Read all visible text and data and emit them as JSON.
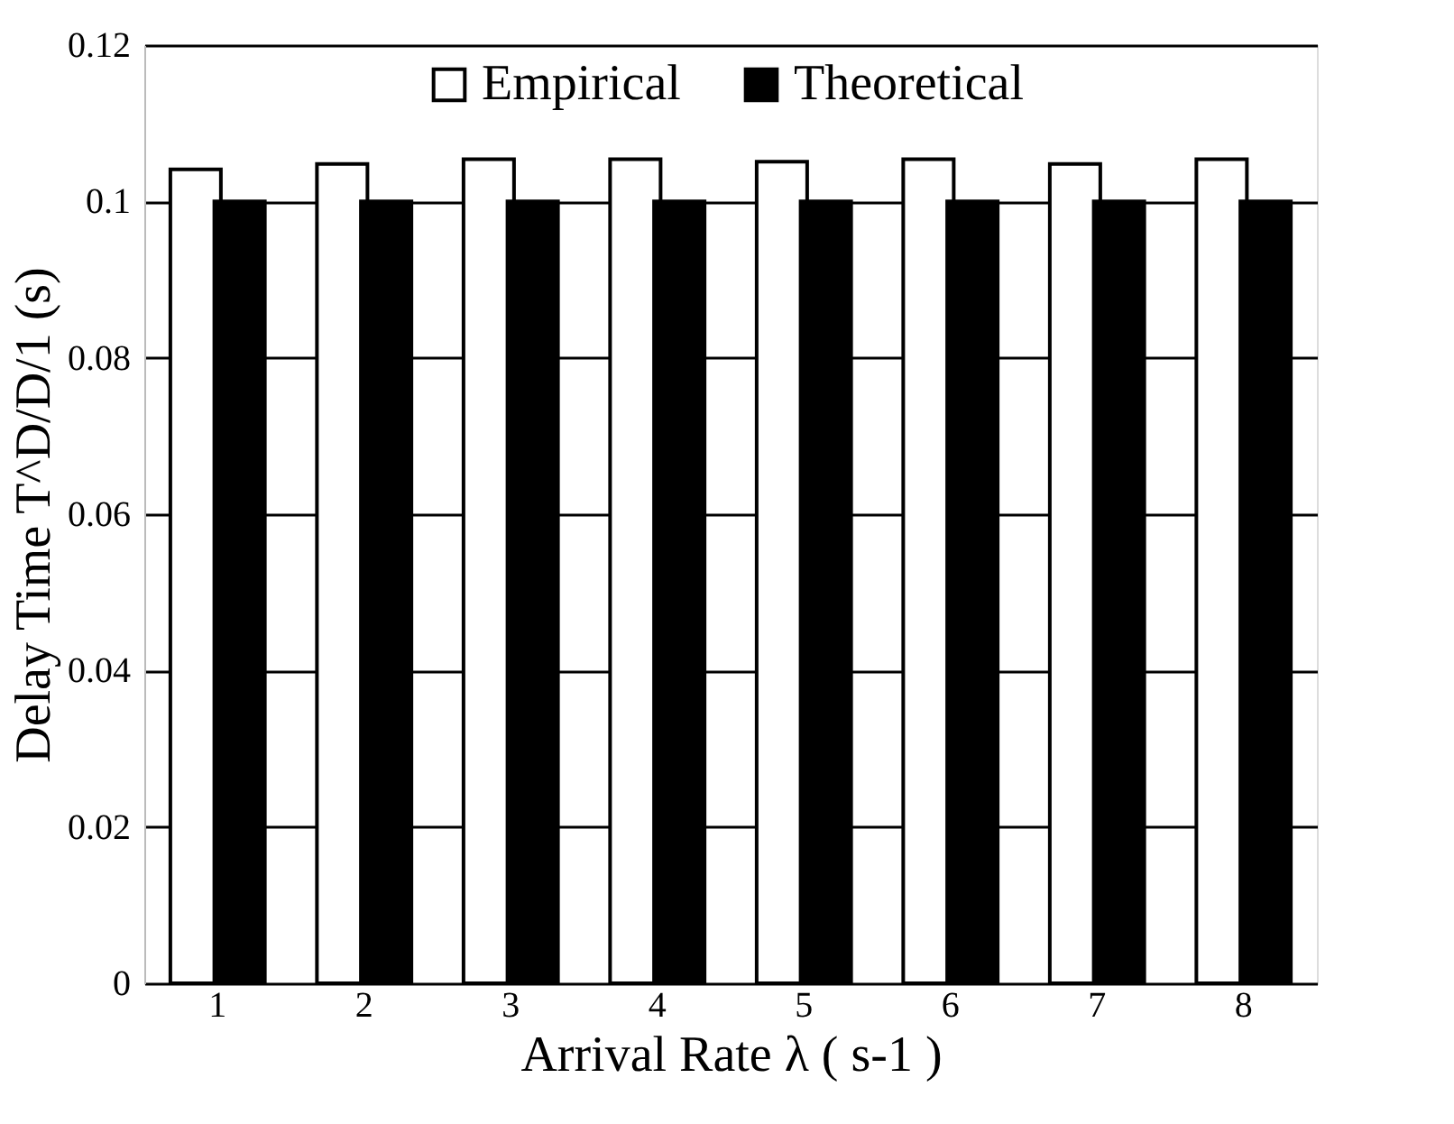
{
  "chart_data": {
    "type": "bar",
    "xlabel": "Arrival Rate λ ( s-1 )",
    "ylabel": "Delay Time T^D/D/1 (s)",
    "categories": [
      "1",
      "2",
      "3",
      "4",
      "5",
      "6",
      "7",
      "8"
    ],
    "series": [
      {
        "name": "Empirical",
        "color": "#ffffff",
        "values": [
          0.1041,
          0.1048,
          0.1054,
          0.1054,
          0.1051,
          0.1054,
          0.1048,
          0.1054
        ]
      },
      {
        "name": "Theoretical",
        "color": "#000000",
        "values": [
          0.1,
          0.1,
          0.1,
          0.1,
          0.1,
          0.1,
          0.1,
          0.1
        ]
      }
    ],
    "ylim": [
      0,
      0.12
    ],
    "yticks": [
      0,
      0.02,
      0.04,
      0.06,
      0.08,
      0.1,
      0.12
    ],
    "grid": "y",
    "legend": "top"
  }
}
